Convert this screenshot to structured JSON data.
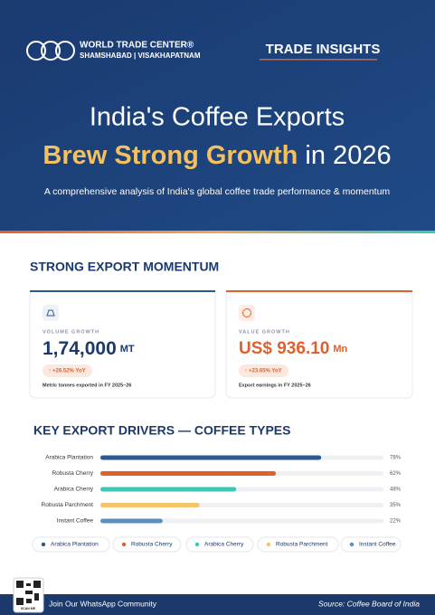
{
  "header": {
    "org_name": "WORLD TRADE CENTER®",
    "org_locations": "SHAMSHABAD | VISAKHAPATNAM",
    "badge": "TRADE INSIGHTS",
    "title_line1": "India's Coffee Exports",
    "title_highlight": "Brew Strong Growth",
    "title_rest": " in 2026",
    "subtitle": "A comprehensive analysis of India's global coffee trade performance & momentum"
  },
  "momentum": {
    "heading": "STRONG EXPORT MOMENTUM",
    "cards": [
      {
        "label": "VOLUME GROWTH",
        "value": "1,74,000",
        "unit": "MT",
        "change": "↑ +26.52% YoY",
        "note": "Metric tonnes exported in FY 2025–26"
      },
      {
        "label": "VALUE GROWTH",
        "value": "US$ 936.10",
        "unit": "Mn",
        "change": "↑ +23.65% YoY",
        "note": "Export earnings in FY 2025–26"
      }
    ]
  },
  "chart_data": {
    "type": "bar",
    "orientation": "horizontal",
    "title": "KEY EXPORT DRIVERS — COFFEE TYPES",
    "categories": [
      "Arabica Plantation",
      "Robusta Cherry",
      "Arabica Cherry",
      "Robusta Parchment",
      "Instant Coffee"
    ],
    "values": [
      78,
      62,
      48,
      35,
      22
    ],
    "value_labels": [
      "78%",
      "62%",
      "48%",
      "35%",
      "22%"
    ],
    "colors": [
      "#2b5a8e",
      "#e05f2c",
      "#3cc8b4",
      "#f4c46b",
      "#5a8fc0"
    ],
    "xlim": [
      0,
      100
    ]
  },
  "footer": {
    "qr_caption": "SCAN ME",
    "community": "Join Our WhatsApp Community",
    "source": "Source: Coffee Board of India"
  }
}
